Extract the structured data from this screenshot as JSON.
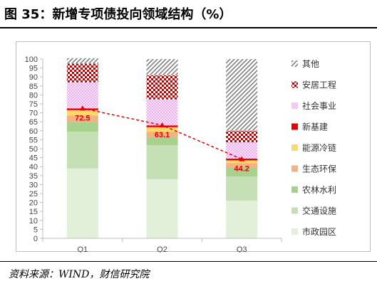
{
  "title": "图 35：新增专项债投向领域结构（%）",
  "source": "资料来源：WIND，财信研究院",
  "colors": {
    "市政园区": "#e2f0d9",
    "交通设施": "#c5e0b4",
    "农林水利": "#a9d18e",
    "生态环保": "#f4b183",
    "能源冷链": "#ffd966",
    "新基建": "#e60000",
    "社会事业": "#f4c7f4",
    "安居工程": "#c00000",
    "其他": "#a6a6a6",
    "trend_line": "#e60000"
  },
  "chart_data": {
    "type": "bar",
    "stacked": true,
    "categories": [
      "Q1",
      "Q2",
      "Q3"
    ],
    "ylim": [
      0,
      100
    ],
    "yticks": [
      "0",
      "5",
      "10",
      "15",
      "20",
      "25",
      "30",
      "35",
      "40",
      "45",
      "50",
      "55",
      "60",
      "65",
      "70",
      "75",
      "80",
      "85",
      "90",
      "95",
      "100"
    ],
    "grid": false,
    "legend_position": "right",
    "series": [
      {
        "name": "市政园区",
        "values": [
          39,
          33,
          21
        ],
        "pattern": "solid"
      },
      {
        "name": "交通设施",
        "values": [
          20.5,
          19,
          13.5
        ],
        "pattern": "solid"
      },
      {
        "name": "农林水利",
        "values": [
          5.5,
          4.5,
          5
        ],
        "pattern": "solid"
      },
      {
        "name": "生态环保",
        "values": [
          3.5,
          3,
          2.5
        ],
        "pattern": "solid"
      },
      {
        "name": "能源冷链",
        "values": [
          3,
          2.5,
          1.5
        ],
        "pattern": "solid"
      },
      {
        "name": "新基建",
        "values": [
          1,
          1,
          1
        ],
        "pattern": "solid"
      },
      {
        "name": "社会事业",
        "values": [
          14.5,
          14.5,
          9
        ],
        "pattern": "dots"
      },
      {
        "name": "安居工程",
        "values": [
          10.5,
          13.5,
          6.5
        ],
        "pattern": "checker"
      },
      {
        "name": "其他",
        "values": [
          3,
          9,
          40
        ],
        "pattern": "hatch"
      }
    ],
    "line": {
      "values": [
        72.5,
        63.1,
        44.2
      ],
      "labels": [
        "72.5",
        "63.1",
        "44.2"
      ]
    }
  }
}
